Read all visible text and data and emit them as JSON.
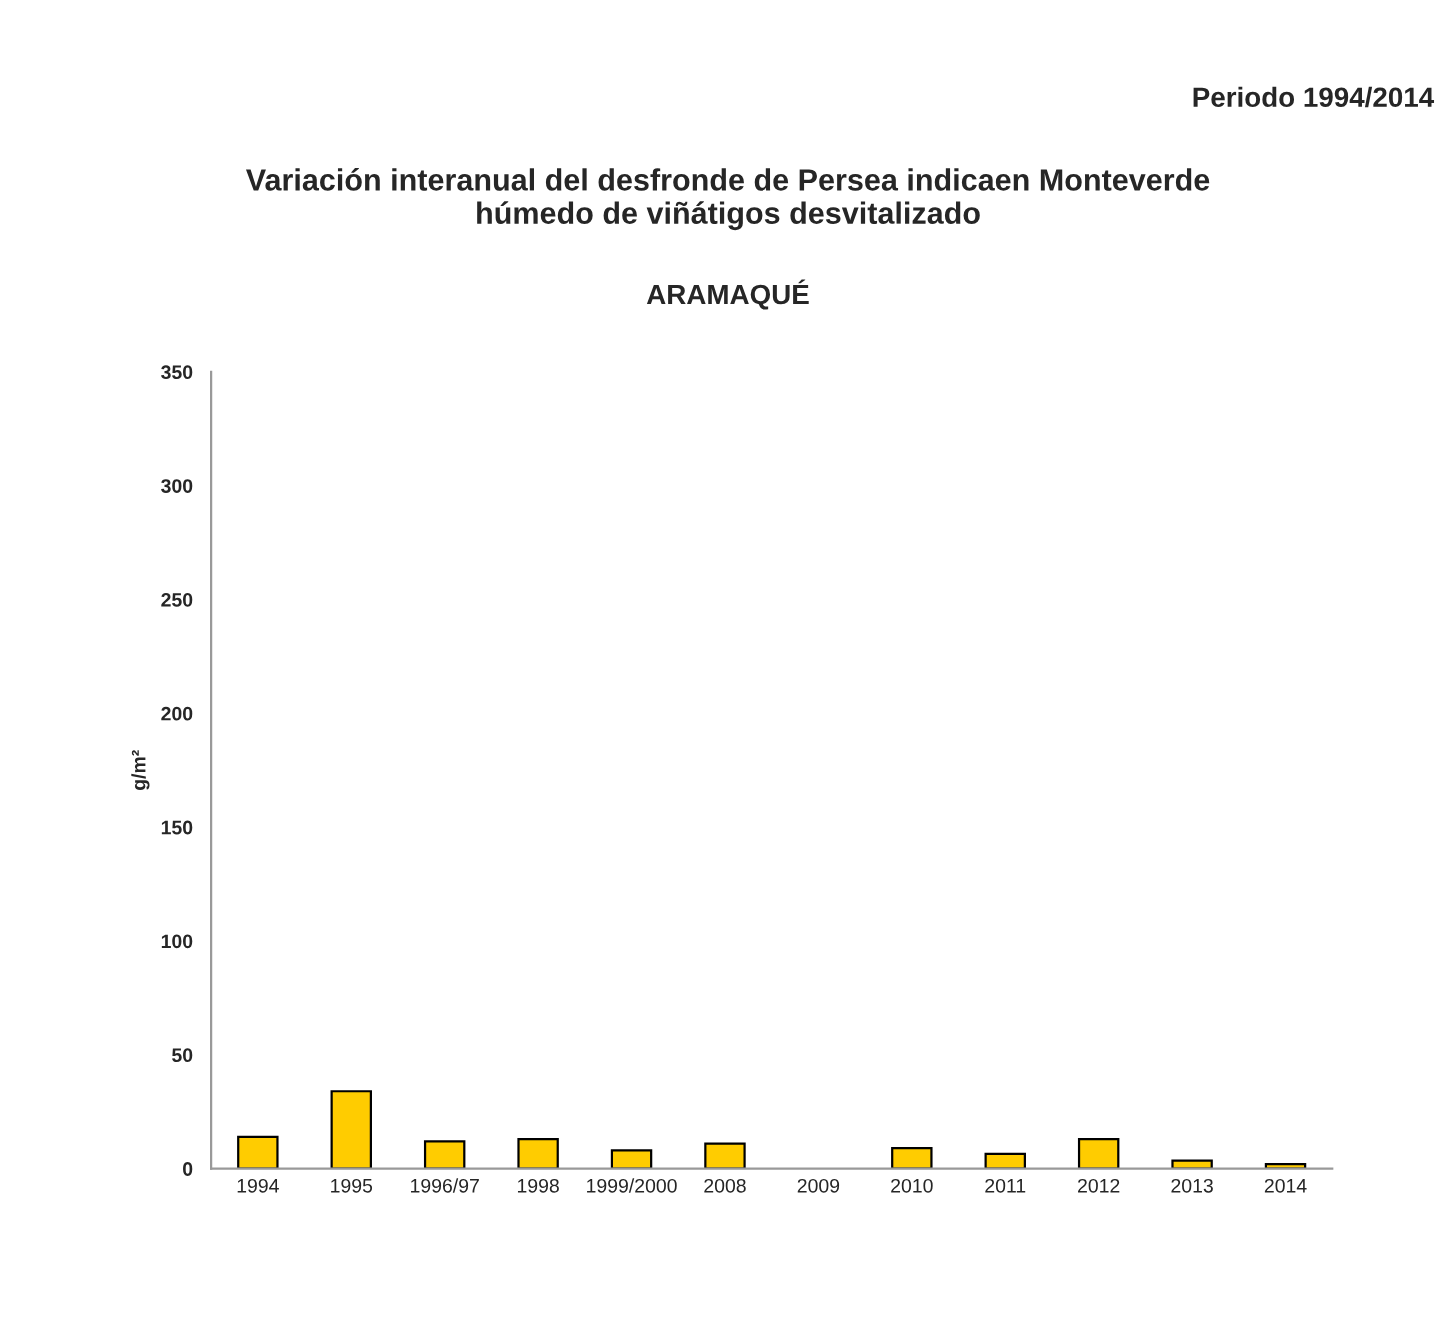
{
  "chart_data": {
    "type": "bar",
    "title": "Variación interanual del desfronde de Persea indicaen Monteverde\nhúmedo de viñátigos desvitalizado",
    "subtitle": "ARAMAQUÉ",
    "annotations": [
      "Periodo 1994/2014"
    ],
    "ylabel": "g/m²",
    "categories": [
      "1994",
      "1995",
      "1996/97",
      "1998",
      "1999/2000",
      "2008",
      "2009",
      "2010",
      "2011",
      "2012",
      "2013",
      "2014"
    ],
    "values": [
      14,
      34,
      12,
      13,
      8,
      11,
      null,
      9,
      6.5,
      13,
      3.5,
      2
    ],
    "color": "#ffcc00",
    "ylim": [
      0,
      350
    ],
    "yticks": [
      0,
      50,
      100,
      150,
      200,
      250,
      300,
      350
    ],
    "grid": false,
    "legend": false
  }
}
